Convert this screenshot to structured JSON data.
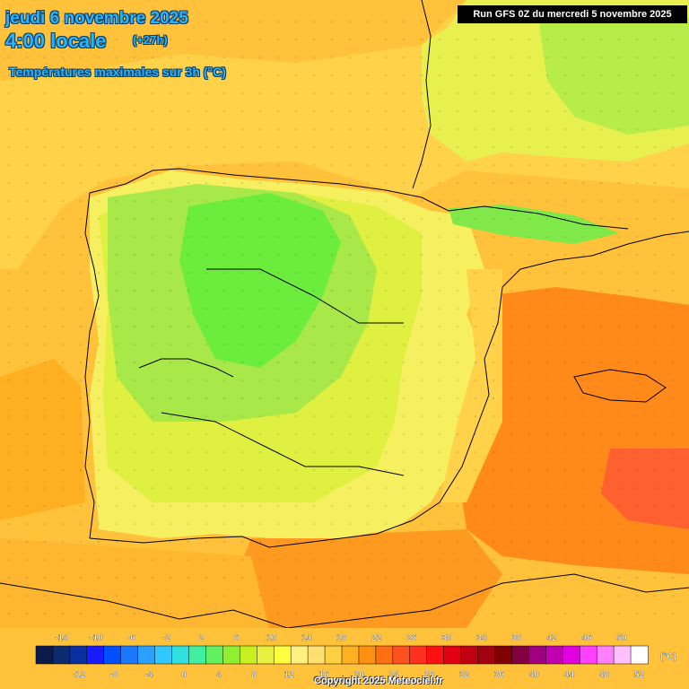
{
  "header": {
    "date_line": "jeudi 6 novembre 2025",
    "time_line": "4:00 locale",
    "offset": "(+27h)",
    "parameter": "Températures maximales sur 3h (°C)"
  },
  "run_label": "Run GFS 0Z du mercredi 5 novembre 2025",
  "copyright": "Copyright 2025 Meteociel.fr",
  "legend": {
    "unit": "(°C)",
    "ticks": [
      -14,
      -12,
      -10,
      -8,
      -6,
      -4,
      -2,
      0,
      2,
      4,
      6,
      8,
      10,
      12,
      14,
      16,
      18,
      20,
      22,
      24,
      26,
      28,
      30,
      32,
      34,
      36,
      38,
      40,
      42,
      44,
      46,
      48,
      50,
      52
    ],
    "colors": [
      "#0a1a4a",
      "#0c2a6e",
      "#0a2fa0",
      "#1a1aff",
      "#0050ff",
      "#1a78ff",
      "#2aa0ff",
      "#30c8ff",
      "#30e0e0",
      "#40f0a0",
      "#60f060",
      "#90f030",
      "#c8f020",
      "#e8f040",
      "#ffff40",
      "#fff080",
      "#ffe070",
      "#ffd040",
      "#ffb020",
      "#ff9010",
      "#ff7010",
      "#ff5020",
      "#ff3020",
      "#ff1010",
      "#e00010",
      "#c00010",
      "#a00010",
      "#800000",
      "#800040",
      "#a00080",
      "#c000b0",
      "#e000e0",
      "#ff40ff",
      "#ff80ff",
      "#ffc0ff",
      "#ffffff"
    ]
  },
  "map": {
    "bands": [
      {
        "name": "land-10",
        "color": "#a8e848"
      },
      {
        "name": "land-6",
        "color": "#6cec3c"
      },
      {
        "name": "land-12",
        "color": "#e0f040"
      },
      {
        "name": "land-14",
        "color": "#f6f060"
      },
      {
        "name": "sea-16",
        "color": "#ffd24a"
      },
      {
        "name": "sea-18",
        "color": "#ffb830"
      },
      {
        "name": "sea-20",
        "color": "#ff8a1a"
      },
      {
        "name": "sea-22",
        "color": "#ff6030"
      }
    ]
  }
}
